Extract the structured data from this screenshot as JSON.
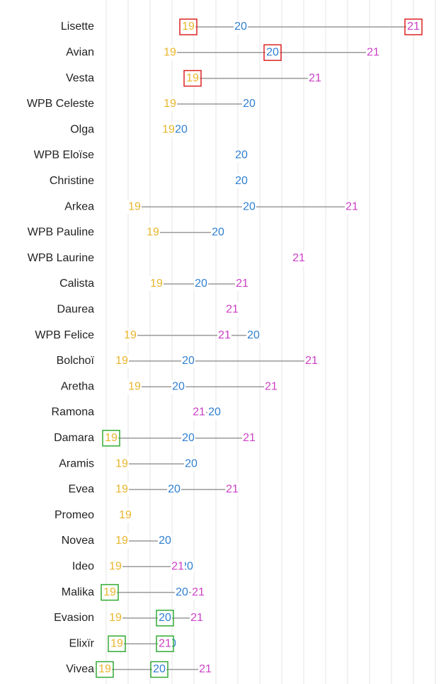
{
  "chart_data": {
    "type": "dot",
    "categories": [
      "Lisette",
      "Avian",
      "Vesta",
      "WPB Celeste",
      "Olga",
      "WPB Eloïse",
      "Christine",
      "Arkea",
      "WPB Pauline",
      "WPB Laurine",
      "Calista",
      "Daurea",
      "WPB Felice",
      "Bolchoï",
      "Aretha",
      "Ramona",
      "Damara",
      "Aramis",
      "Evea",
      "Promeo",
      "Novea",
      "Ideo",
      "Malika",
      "Evasion",
      "Elixïr",
      "Vivea"
    ],
    "series": [
      {
        "name": "19",
        "color": "#e8b52c",
        "values": [
          266,
          240,
          272,
          240,
          238,
          null,
          null,
          190,
          216,
          null,
          221,
          null,
          184,
          172,
          190,
          null,
          157,
          172,
          172,
          177,
          172,
          163,
          155,
          163,
          165,
          148
        ],
        "highlight": [
          "#d22",
          null,
          "#d22",
          null,
          null,
          null,
          null,
          null,
          null,
          null,
          null,
          null,
          null,
          null,
          null,
          null,
          "#3a3",
          null,
          null,
          null,
          null,
          null,
          "#3a3",
          null,
          "#3a3",
          "#3a3"
        ]
      },
      {
        "name": "20",
        "color": "#2f7fd0",
        "values": [
          340,
          385,
          null,
          352,
          256,
          341,
          341,
          352,
          308,
          null,
          284,
          null,
          358,
          266,
          252,
          303,
          266,
          270,
          246,
          null,
          233,
          264,
          257,
          233,
          240,
          225
        ],
        "highlight": [
          null,
          "#d22",
          null,
          null,
          null,
          null,
          null,
          null,
          null,
          null,
          null,
          null,
          null,
          null,
          null,
          null,
          null,
          null,
          null,
          null,
          null,
          null,
          null,
          "#3a3",
          null,
          "#3a3"
        ]
      },
      {
        "name": "21",
        "color": "#cc3fc4",
        "values": [
          584,
          527,
          445,
          null,
          null,
          null,
          null,
          497,
          null,
          422,
          342,
          328,
          317,
          440,
          383,
          281,
          352,
          null,
          328,
          null,
          null,
          251,
          280,
          278,
          233,
          290
        ],
        "highlight": [
          "#d22",
          null,
          null,
          null,
          null,
          null,
          null,
          null,
          null,
          null,
          null,
          null,
          null,
          null,
          null,
          null,
          null,
          null,
          null,
          null,
          null,
          null,
          null,
          null,
          "#3a3",
          null
        ]
      }
    ],
    "xlim": [
      140,
      630
    ],
    "xticks": [
      150,
      181,
      212,
      243,
      274,
      305,
      336,
      367,
      398,
      429,
      460,
      491,
      522,
      553,
      584,
      615
    ],
    "grid": true
  }
}
